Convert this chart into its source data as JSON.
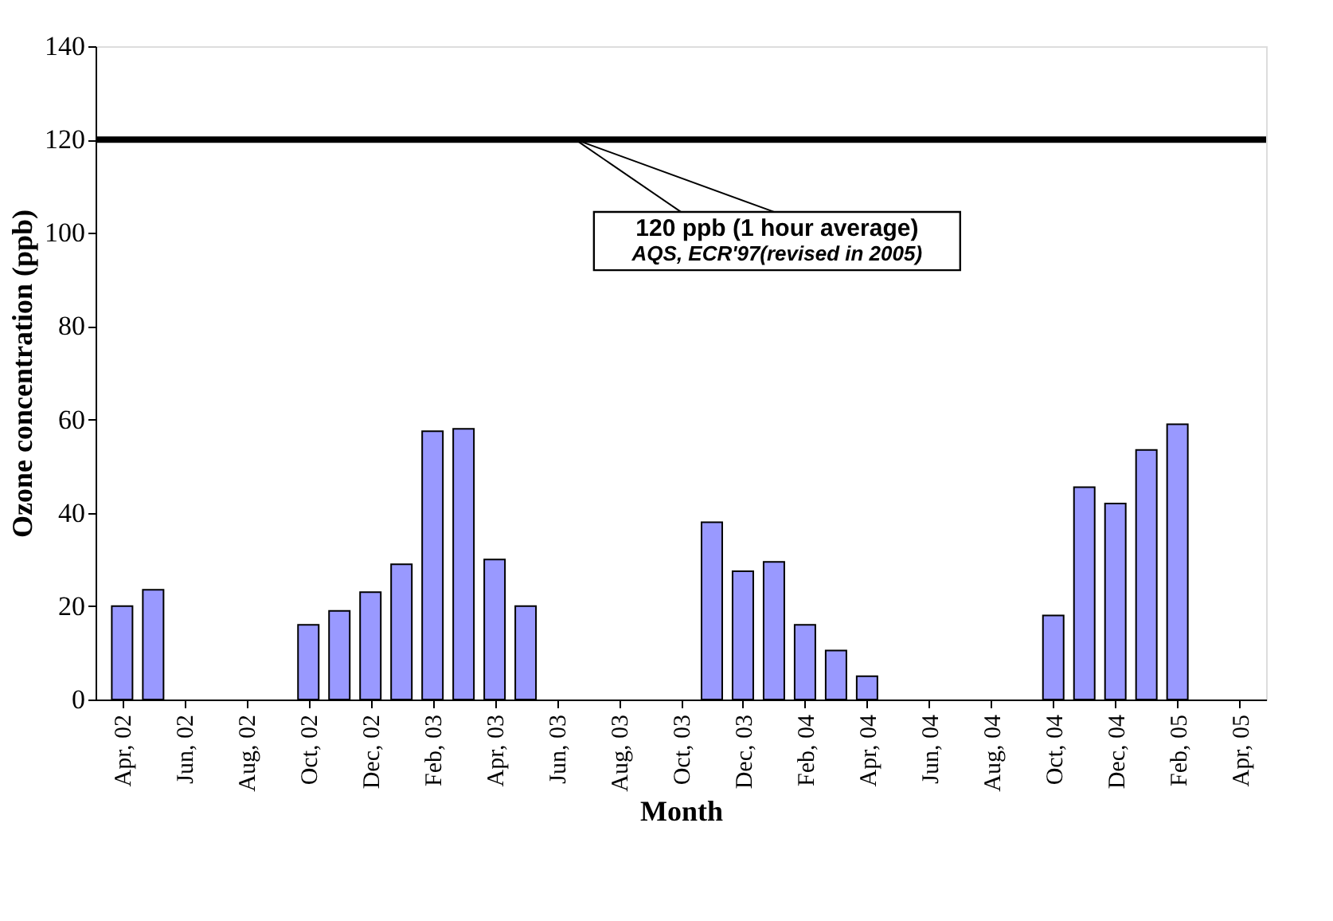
{
  "chart_data": {
    "type": "bar",
    "xlabel": "Month",
    "ylabel": "Ozone concentration (ppb)",
    "categories": [
      "Apr, 02",
      null,
      "Jun, 02",
      null,
      "Aug, 02",
      null,
      "Oct, 02",
      null,
      "Dec, 02",
      null,
      "Feb, 03",
      null,
      "Apr, 03",
      null,
      "Jun, 03",
      null,
      "Aug, 03",
      null,
      "Oct, 03",
      null,
      "Dec, 03",
      null,
      "Feb, 04",
      null,
      "Apr, 04",
      null,
      "Jun, 04",
      null,
      "Aug, 04",
      null,
      "Oct, 04",
      null,
      "Dec, 04",
      null,
      "Feb, 05",
      null,
      "Apr, 05"
    ],
    "values": [
      20,
      23.5,
      null,
      null,
      null,
      null,
      16,
      19,
      23,
      29,
      57.5,
      58,
      30,
      20,
      null,
      null,
      null,
      null,
      null,
      38,
      27.5,
      29.5,
      16,
      10.5,
      5,
      null,
      null,
      null,
      null,
      null,
      18,
      45.5,
      42,
      53.5,
      59,
      null,
      null
    ],
    "color": "#9999ff",
    "ylim": [
      0,
      140
    ],
    "yticks": [
      0,
      20,
      40,
      60,
      80,
      100,
      120,
      140
    ],
    "grid": false,
    "ref_lines": [
      {
        "axis": "y",
        "value": 120,
        "label": "120 ppb (1 hour average)",
        "color": "#000000",
        "line_style": "solid"
      }
    ],
    "annotations": [
      "AQS, ECR'97(revised in 2005)"
    ]
  }
}
